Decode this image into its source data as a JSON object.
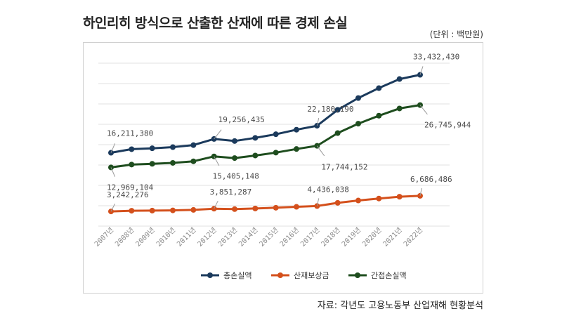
{
  "title": "하인리히 방식으로 산출한 산재에 따른 경제 손실",
  "unit": "(단위 : 백만원)",
  "source": "자료: 각년도 고용노동부 산업재해 현황분석",
  "chart_data": {
    "type": "line",
    "categories": [
      "2007년",
      "2008년",
      "2009년",
      "2010년",
      "2011년",
      "2012년",
      "2013년",
      "2014년",
      "2015년",
      "2016년",
      "2017년",
      "2018년",
      "2019년",
      "2020년",
      "2021년",
      "2022년"
    ],
    "ylim": [
      0,
      36000000
    ],
    "grid": true,
    "legend_position": "bottom",
    "series": [
      {
        "name": "총손실액",
        "color": "#1b3a5c",
        "values": [
          16211380,
          17000000,
          17200000,
          17450000,
          17900000,
          19256435,
          18800000,
          19500000,
          20300000,
          21300000,
          22180190,
          25700000,
          28300000,
          30500000,
          32500000,
          33432430
        ]
      },
      {
        "name": "산재보상금",
        "color": "#d4501c",
        "values": [
          3242276,
          3400000,
          3430000,
          3480000,
          3580000,
          3851287,
          3760000,
          3900000,
          4060000,
          4260000,
          4436038,
          5140000,
          5660000,
          6100000,
          6500000,
          6686486
        ]
      },
      {
        "name": "간접손실액",
        "color": "#1e4d1e",
        "values": [
          12969104,
          13600000,
          13770000,
          13970000,
          14320000,
          15405148,
          15040000,
          15600000,
          16240000,
          17040000,
          17744152,
          20560000,
          22640000,
          24400000,
          26000000,
          26745944
        ]
      }
    ],
    "data_labels": [
      {
        "series": 0,
        "index": 0,
        "text": "16,211,380"
      },
      {
        "series": 0,
        "index": 5,
        "text": "19,256,435"
      },
      {
        "series": 0,
        "index": 10,
        "text": "22,180,190"
      },
      {
        "series": 0,
        "index": 15,
        "text": "33,432,430"
      },
      {
        "series": 2,
        "index": 0,
        "text": "12,969,104"
      },
      {
        "series": 2,
        "index": 5,
        "text": "15,405,148"
      },
      {
        "series": 2,
        "index": 10,
        "text": "17,744,152"
      },
      {
        "series": 2,
        "index": 15,
        "text": "26,745,944"
      },
      {
        "series": 1,
        "index": 0,
        "text": "3,242,276"
      },
      {
        "series": 1,
        "index": 5,
        "text": "3,851,287"
      },
      {
        "series": 1,
        "index": 10,
        "text": "4,436,038"
      },
      {
        "series": 1,
        "index": 15,
        "text": "6,686,486"
      }
    ]
  }
}
